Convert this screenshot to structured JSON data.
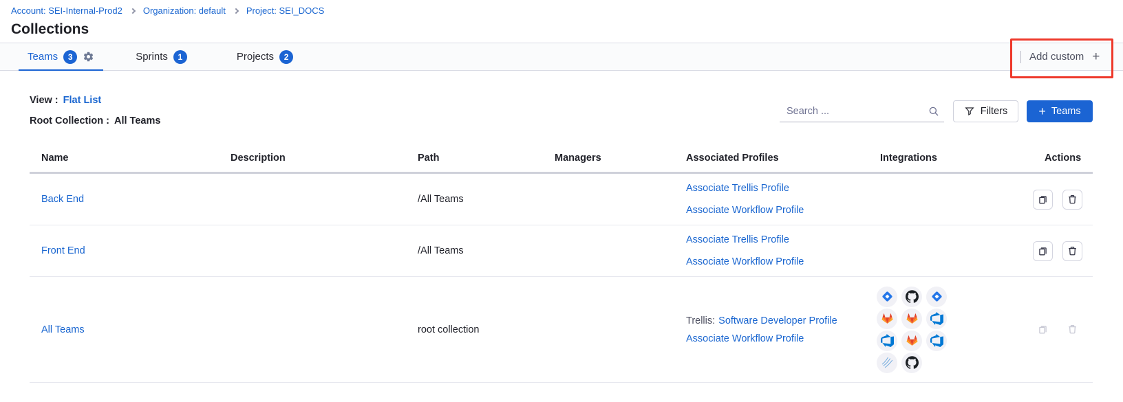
{
  "colors": {
    "accent_blue": "#1b64d3",
    "link_blue": "#1a66d0",
    "annotation_red": "#ee392b",
    "jira_blue": "#2476e8",
    "azure_devops_blue": "#0078d4",
    "gitlab_orange": "#fc6d26",
    "github_black": "#1b1f23"
  },
  "breadcrumb": {
    "items": [
      {
        "label": "Account: SEI-Internal-Prod2"
      },
      {
        "label": "Organization: default"
      },
      {
        "label": "Project: SEI_DOCS"
      }
    ]
  },
  "page_title": "Collections",
  "tabs": {
    "items": [
      {
        "label": "Teams",
        "badge": "3"
      },
      {
        "label": "Sprints",
        "badge": "1"
      },
      {
        "label": "Projects",
        "badge": "2"
      }
    ],
    "add_custom_label": "Add custom",
    "add_custom_plus": "+"
  },
  "toolbar": {
    "view_label": "View :",
    "view_value": "Flat List",
    "root_collection_label": "Root Collection :",
    "root_collection_value": "All Teams",
    "search_placeholder": "Search ...",
    "filters_label": "Filters",
    "add_teams_plus": "+",
    "add_teams_label": "Teams"
  },
  "table": {
    "headers": [
      "Name",
      "Description",
      "Path",
      "Managers",
      "Associated Profiles",
      "Integrations",
      "Actions"
    ],
    "rows": [
      {
        "name": "Back End",
        "description": "",
        "path": "/All Teams",
        "managers": "",
        "profiles": [
          {
            "prefix": "",
            "link": "Associate Trellis Profile"
          },
          {
            "prefix": "",
            "link": "Associate Workflow Profile"
          }
        ],
        "integrations": [],
        "actions_enabled": true
      },
      {
        "name": "Front End",
        "description": "",
        "path": "/All Teams",
        "managers": "",
        "profiles": [
          {
            "prefix": "",
            "link": "Associate Trellis Profile"
          },
          {
            "prefix": "",
            "link": "Associate Workflow Profile"
          }
        ],
        "integrations": [],
        "actions_enabled": true
      },
      {
        "name": "All Teams",
        "description": "",
        "path": "root collection",
        "managers": "",
        "profiles": [
          {
            "prefix": "Trellis:",
            "link": "Software Developer Profile"
          },
          {
            "prefix": "",
            "link": "Associate Workflow Profile"
          }
        ],
        "integrations": [
          "jira",
          "github",
          "jira",
          "gitlab",
          "gitlab",
          "azure-devops",
          "azure-devops",
          "gitlab",
          "azure-devops",
          "arcs",
          "github"
        ],
        "actions_enabled": false
      }
    ]
  }
}
